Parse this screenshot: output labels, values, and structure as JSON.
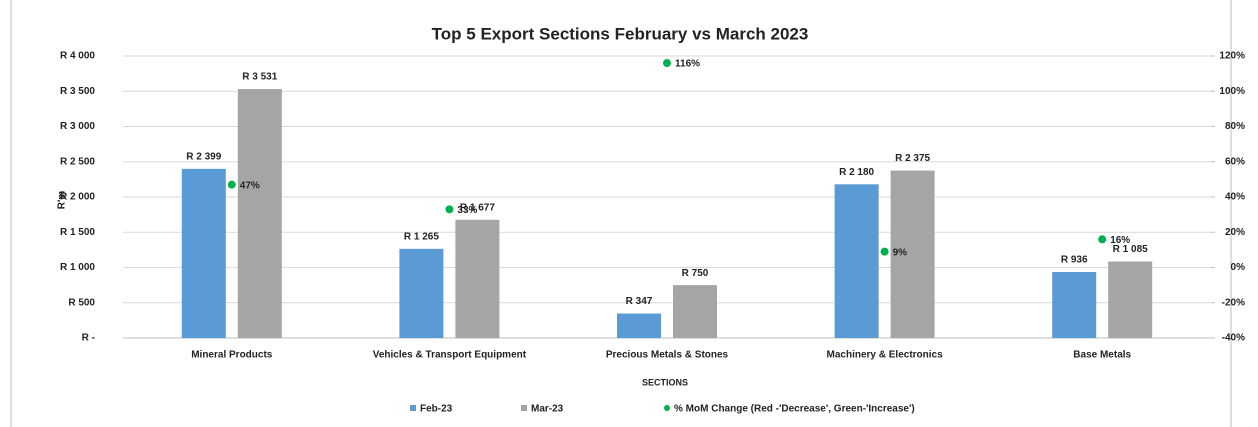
{
  "chart_data": {
    "type": "bar",
    "title": "Top 5 Export Sections February vs March 2023",
    "x_label": "SECTIONS",
    "y_label": "R'm",
    "categories": [
      "Mineral Products",
      "Vehicles & Transport Equipment",
      "Precious Metals & Stones",
      "Machinery & Electronics",
      "Base Metals"
    ],
    "series": [
      {
        "name": "Feb-23",
        "color": "#5b9bd5",
        "values": [
          2399,
          1265,
          347,
          2180,
          936
        ],
        "value_labels": [
          "R 2 399",
          "R 1 265",
          "R  347",
          "R 2 180",
          "R  936"
        ]
      },
      {
        "name": "Mar-23",
        "color": "#a5a5a5",
        "values": [
          3531,
          1677,
          750,
          2375,
          1085
        ],
        "value_labels": [
          "R 3 531",
          "R 1 677",
          "R  750",
          "R 2 375",
          "R 1 085"
        ]
      },
      {
        "name": "% MoM Change (Red -'Decrease', Green-'Increase')",
        "color": "#00b050",
        "axis": "y2",
        "values": [
          47,
          33,
          116,
          9,
          16
        ],
        "value_labels": [
          "47%",
          "33%",
          "116%",
          "9%",
          "16%"
        ]
      }
    ],
    "ylim": [
      0,
      4000
    ],
    "yticks": [
      {
        "value": 0,
        "label": "R -"
      },
      {
        "value": 500,
        "label": "R 500"
      },
      {
        "value": 1000,
        "label": "R 1 000"
      },
      {
        "value": 1500,
        "label": "R 1 500"
      },
      {
        "value": 2000,
        "label": "R 2 000"
      },
      {
        "value": 2500,
        "label": "R 2 500"
      },
      {
        "value": 3000,
        "label": "R 3 000"
      },
      {
        "value": 3500,
        "label": "R 3 500"
      },
      {
        "value": 4000,
        "label": "R 4 000"
      }
    ],
    "y2lim": [
      -40,
      120
    ],
    "y2ticks": [
      {
        "value": -40,
        "label": "-40%"
      },
      {
        "value": -20,
        "label": "-20%"
      },
      {
        "value": 0,
        "label": "0%"
      },
      {
        "value": 20,
        "label": "20%"
      },
      {
        "value": 40,
        "label": "40%"
      },
      {
        "value": 60,
        "label": "60%"
      },
      {
        "value": 80,
        "label": "80%"
      },
      {
        "value": 100,
        "label": "100%"
      },
      {
        "value": 120,
        "label": "120%"
      }
    ],
    "grid": true
  }
}
